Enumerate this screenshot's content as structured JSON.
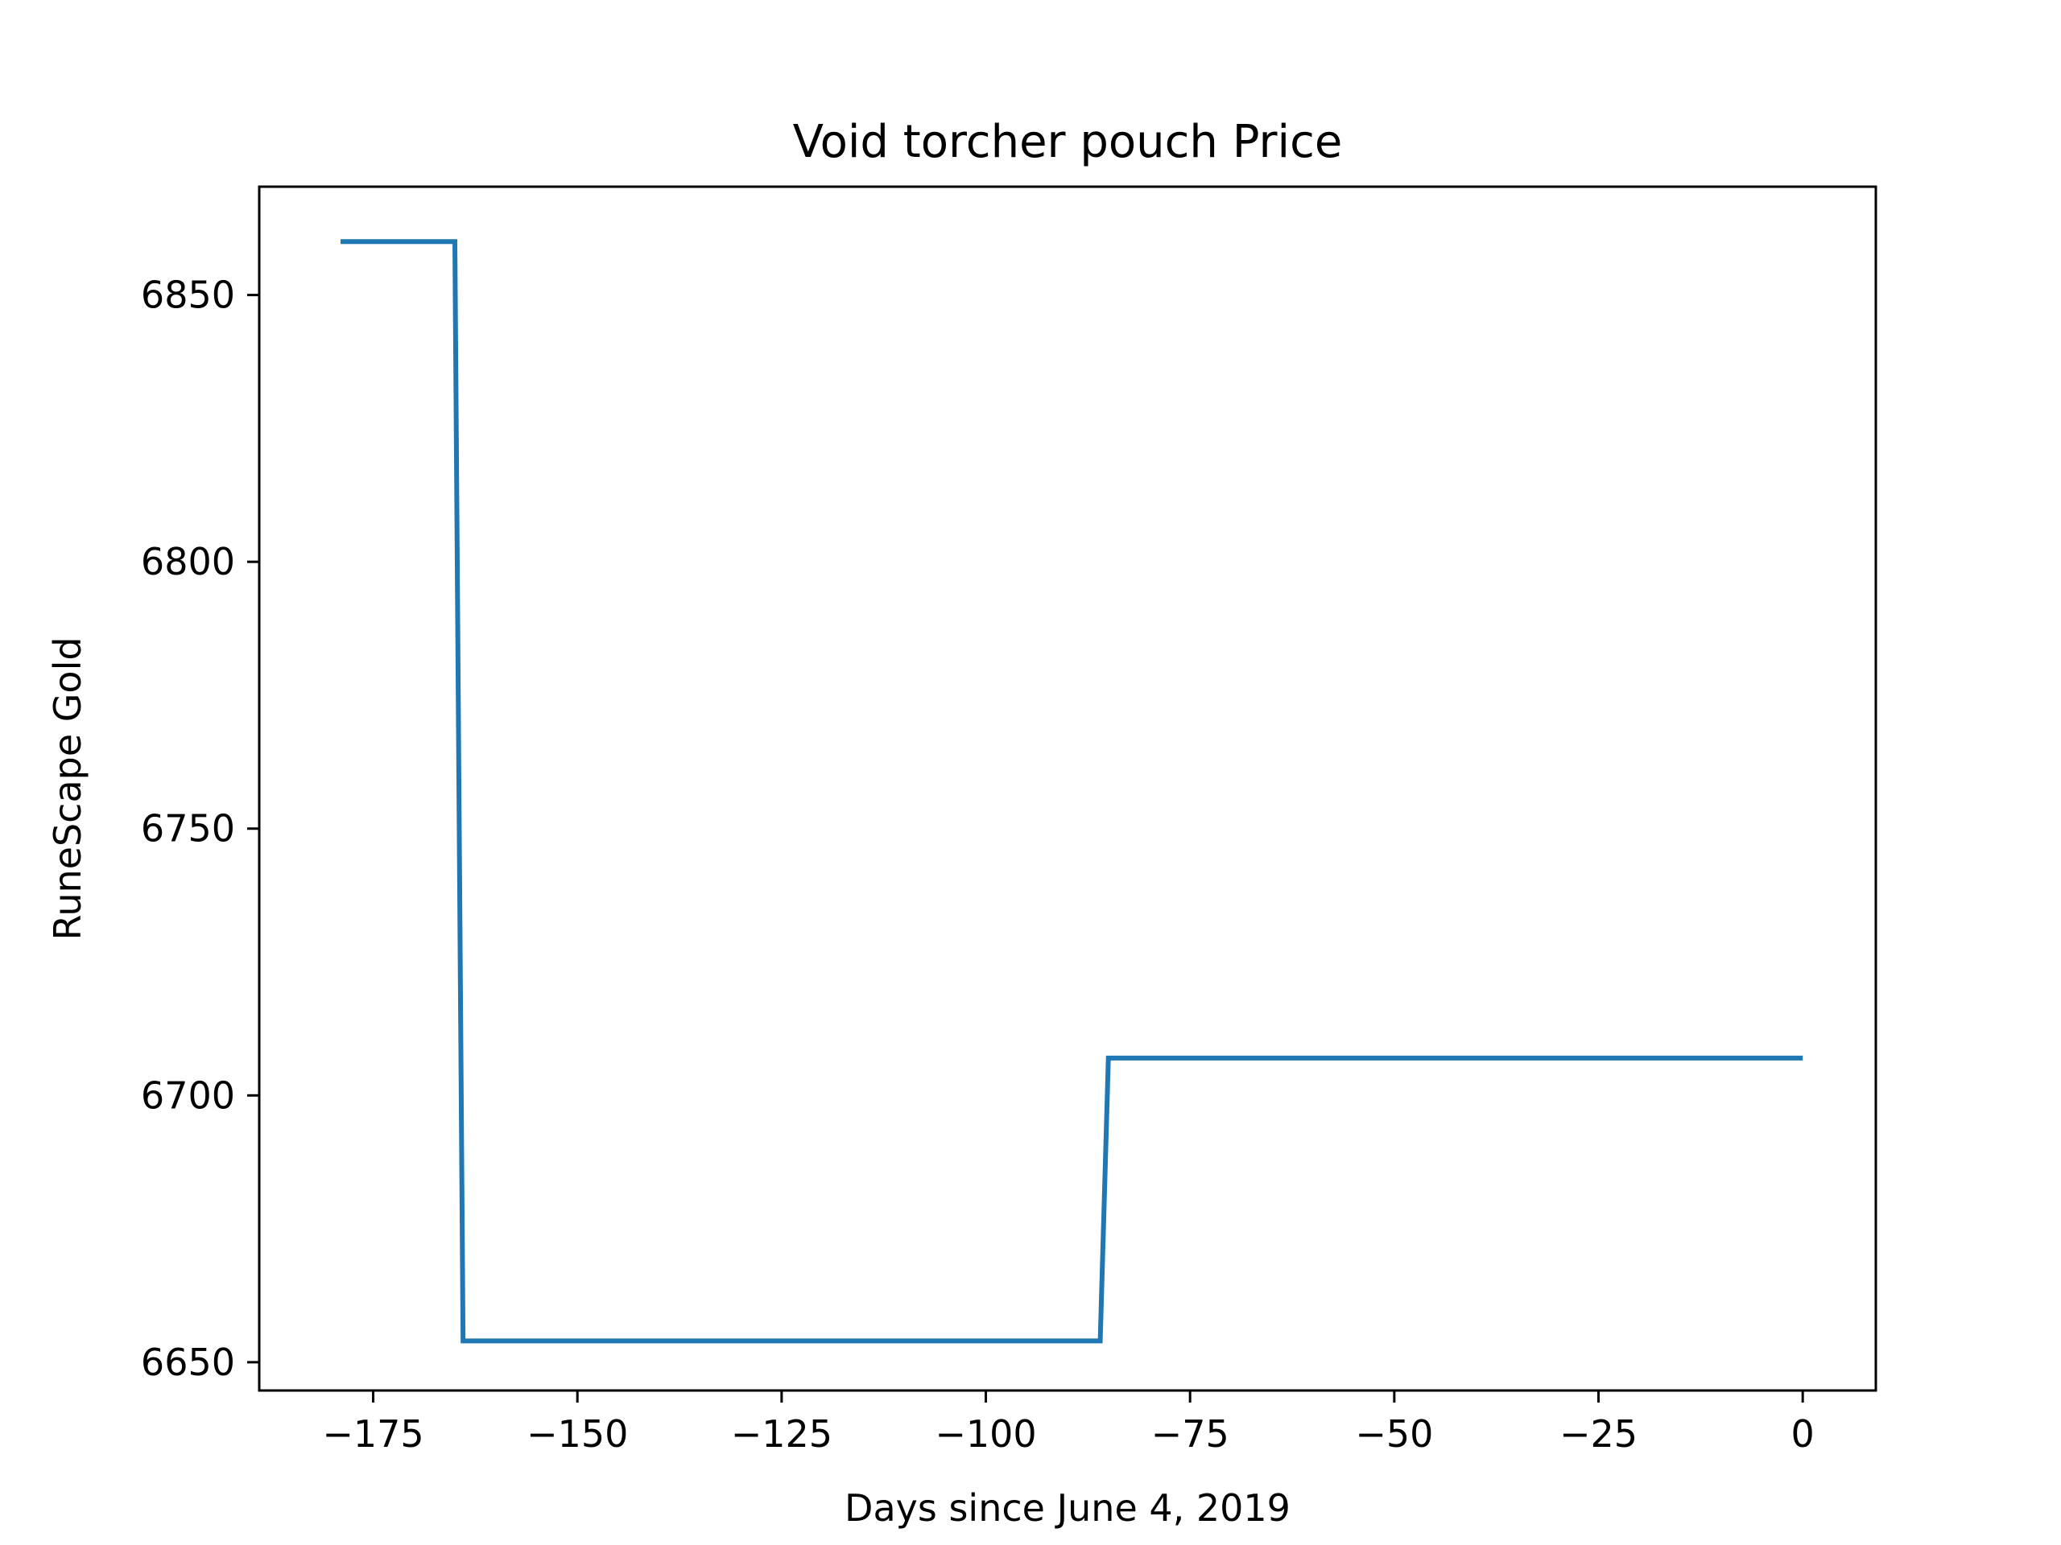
{
  "chart_data": {
    "type": "line",
    "title": "Void torcher pouch Price",
    "xlabel": "Days since June 4, 2019",
    "ylabel": "RuneScape Gold",
    "x_ticks": [
      -175,
      -150,
      -125,
      -100,
      -75,
      -50,
      -25,
      0
    ],
    "x_tick_labels": [
      "−175",
      "−150",
      "−125",
      "−100",
      "−75",
      "−50",
      "−25",
      "0"
    ],
    "y_ticks": [
      6650,
      6700,
      6750,
      6800,
      6850
    ],
    "y_tick_labels": [
      "6650",
      "6700",
      "6750",
      "6800",
      "6850"
    ],
    "xlim": [
      -188.95,
      8.95
    ],
    "ylim": [
      6644.7,
      6870.3
    ],
    "grid": false,
    "series": [
      {
        "color": "#1f77b4",
        "x": [
          -179,
          -165,
          -164,
          -86,
          -85,
          0
        ],
        "y": [
          6860,
          6860,
          6654,
          6654,
          6707,
          6707
        ]
      }
    ]
  }
}
